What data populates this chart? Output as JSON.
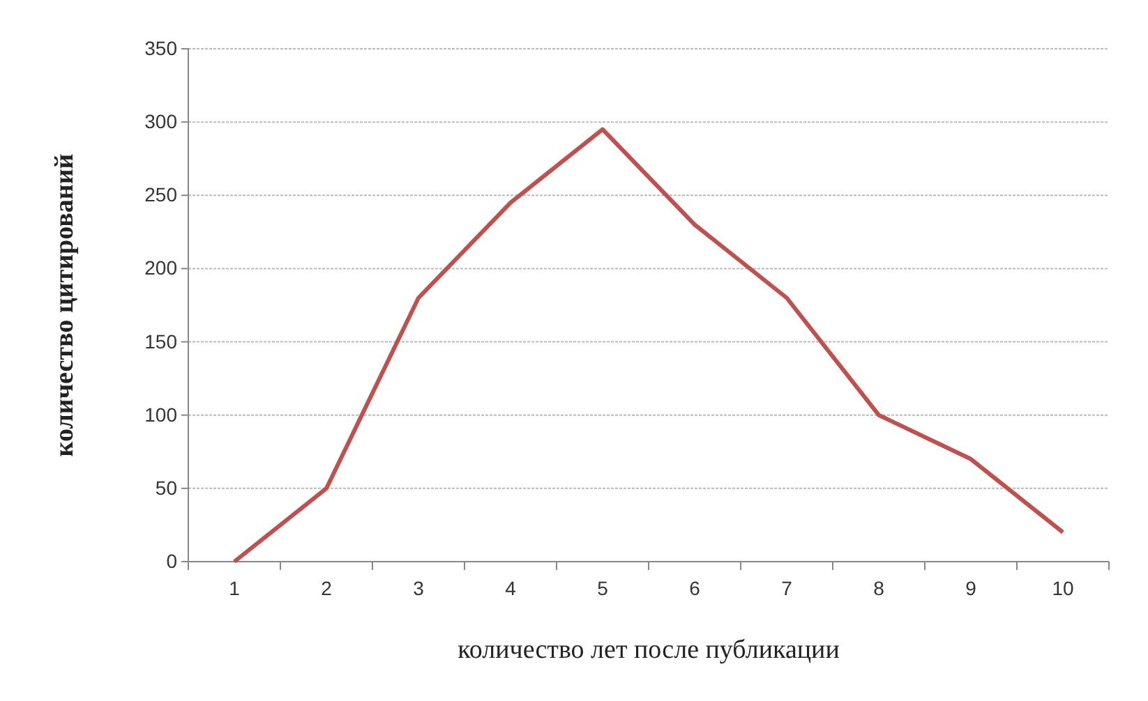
{
  "chart_data": {
    "type": "line",
    "xlabel": "количество лет после публикации",
    "ylabel": "количество цитирований",
    "categories": [
      "1",
      "2",
      "3",
      "4",
      "5",
      "6",
      "7",
      "8",
      "9",
      "10"
    ],
    "series": [
      {
        "color": "#c0504d",
        "values": [
          0,
          50,
          180,
          245,
          295,
          230,
          180,
          100,
          70,
          20
        ]
      }
    ],
    "ylim": [
      0,
      350
    ],
    "yticks": [
      0,
      50,
      100,
      150,
      200,
      250,
      300,
      350
    ],
    "grid": "y",
    "marker": "none",
    "line_style": "solid"
  }
}
